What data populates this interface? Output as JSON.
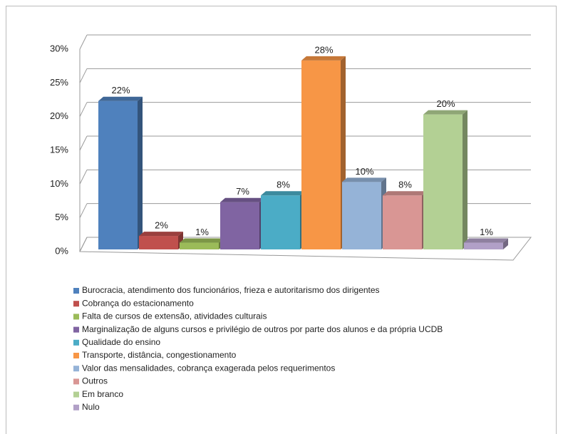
{
  "chart_data": {
    "type": "bar3d",
    "ylim": [
      0,
      30
    ],
    "yticks": [
      {
        "value": 0,
        "label": "0%"
      },
      {
        "value": 5,
        "label": "5%"
      },
      {
        "value": 10,
        "label": "10%"
      },
      {
        "value": 15,
        "label": "15%"
      },
      {
        "value": 20,
        "label": "20%"
      },
      {
        "value": 25,
        "label": "25%"
      },
      {
        "value": 30,
        "label": "30%"
      }
    ],
    "grid": true,
    "legend": "bottom",
    "series": [
      {
        "name": "Burocracia, atendimento dos funcionários, frieza e autoritarismo dos dirigentes",
        "color": "#4f81bd",
        "values": [
          22
        ],
        "value_labels": [
          "22%"
        ]
      },
      {
        "name": "Cobrança do estacionamento",
        "color": "#c0504d",
        "values": [
          2
        ],
        "value_labels": [
          "2%"
        ]
      },
      {
        "name": "Falta de cursos de extensão, atividades culturais",
        "color": "#9bbb59",
        "values": [
          1
        ],
        "value_labels": [
          "1%"
        ]
      },
      {
        "name": "Marginalização de alguns cursos e privilégio de outros por parte dos alunos e da própria UCDB",
        "color": "#8064a2",
        "values": [
          7
        ],
        "value_labels": [
          "7%"
        ]
      },
      {
        "name": "Qualidade do ensino",
        "color": "#4bacc6",
        "values": [
          8
        ],
        "value_labels": [
          "8%"
        ]
      },
      {
        "name": "Transporte, distância, congestionamento",
        "color": "#f79646",
        "values": [
          28
        ],
        "value_labels": [
          "28%"
        ]
      },
      {
        "name": "Valor das mensalidades, cobrança exagerada pelos requerimentos",
        "color": "#95b3d7",
        "values": [
          10
        ],
        "value_labels": [
          "10%"
        ]
      },
      {
        "name": "Outros",
        "color": "#d99694",
        "values": [
          8
        ],
        "value_labels": [
          "8%"
        ]
      },
      {
        "name": "Em branco",
        "color": "#b3d094",
        "values": [
          20
        ],
        "value_labels": [
          "20%"
        ]
      },
      {
        "name": "Nulo",
        "color": "#b1a0c7",
        "values": [
          1
        ],
        "value_labels": [
          "1%"
        ]
      }
    ]
  }
}
